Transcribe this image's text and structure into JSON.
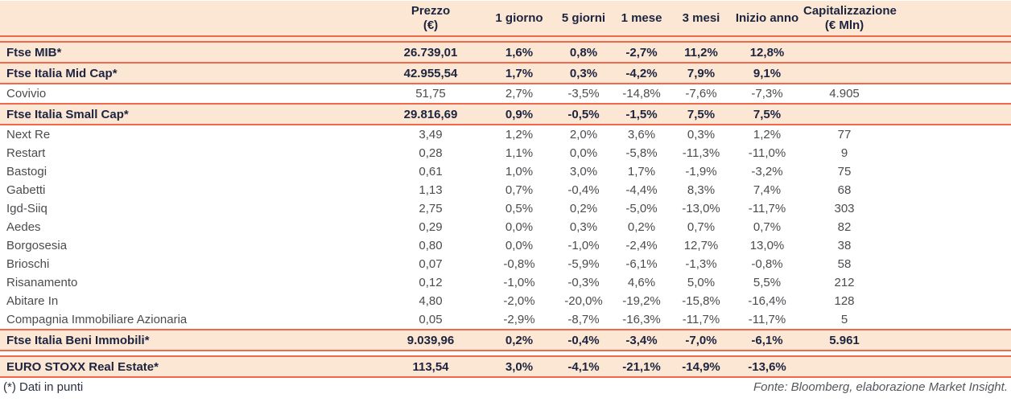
{
  "accent": {
    "rule_color": "#f2684d",
    "band_bg": "#fce7d4",
    "heading_text_color": "#1c2440",
    "body_text_color": "#4b4c50"
  },
  "table": {
    "header": {
      "name": "",
      "prezzo": {
        "l1": "Prezzo",
        "l2": "(€)"
      },
      "g1": "1 giorno",
      "g5": "5 giorni",
      "m1": "1 mese",
      "m3": "3 mesi",
      "ytd": "Inizio anno",
      "cap": {
        "l1": "Capitalizzazione",
        "l2": "(€ Mln)"
      }
    },
    "rows": [
      {
        "type": "index",
        "name": "Ftse MIB*",
        "prezzo": "26.739,01",
        "g1": "1,6%",
        "g5": "0,8%",
        "m1": "-2,7%",
        "m3": "11,2%",
        "ytd": "12,8%",
        "cap": ""
      },
      {
        "type": "index",
        "name": "Ftse Italia Mid Cap*",
        "prezzo": "42.955,54",
        "g1": "1,7%",
        "g5": "0,3%",
        "m1": "-4,2%",
        "m3": "7,9%",
        "ytd": "9,1%",
        "cap": ""
      },
      {
        "type": "stock",
        "ruled": true,
        "name": "Covivio",
        "prezzo": "51,75",
        "g1": "2,7%",
        "g5": "-3,5%",
        "m1": "-14,8%",
        "m3": "-7,6%",
        "ytd": "-7,3%",
        "cap": "4.905"
      },
      {
        "type": "index",
        "name": "Ftse Italia Small Cap*",
        "prezzo": "29.816,69",
        "g1": "0,9%",
        "g5": "-0,5%",
        "m1": "-1,5%",
        "m3": "7,5%",
        "ytd": "7,5%",
        "cap": ""
      },
      {
        "type": "stock",
        "name": "Next Re",
        "prezzo": "3,49",
        "g1": "1,2%",
        "g5": "2,0%",
        "m1": "3,6%",
        "m3": "0,3%",
        "ytd": "1,2%",
        "cap": "77"
      },
      {
        "type": "stock",
        "name": "Restart",
        "prezzo": "0,28",
        "g1": "1,1%",
        "g5": "0,0%",
        "m1": "-5,8%",
        "m3": "-11,3%",
        "ytd": "-11,0%",
        "cap": "9"
      },
      {
        "type": "stock",
        "name": "Bastogi",
        "prezzo": "0,61",
        "g1": "1,0%",
        "g5": "3,0%",
        "m1": "1,7%",
        "m3": "-1,9%",
        "ytd": "-3,2%",
        "cap": "75"
      },
      {
        "type": "stock",
        "name": "Gabetti",
        "prezzo": "1,13",
        "g1": "0,7%",
        "g5": "-0,4%",
        "m1": "-4,4%",
        "m3": "8,3%",
        "ytd": "7,4%",
        "cap": "68"
      },
      {
        "type": "stock",
        "name": "Igd-Siiq",
        "prezzo": "2,75",
        "g1": "0,5%",
        "g5": "0,2%",
        "m1": "-5,0%",
        "m3": "-13,0%",
        "ytd": "-11,7%",
        "cap": "303"
      },
      {
        "type": "stock",
        "name": "Aedes",
        "prezzo": "0,29",
        "g1": "0,0%",
        "g5": "0,3%",
        "m1": "0,2%",
        "m3": "0,7%",
        "ytd": "0,7%",
        "cap": "82"
      },
      {
        "type": "stock",
        "name": "Borgosesia",
        "prezzo": "0,80",
        "g1": "0,0%",
        "g5": "-1,0%",
        "m1": "-2,4%",
        "m3": "12,7%",
        "ytd": "13,0%",
        "cap": "38"
      },
      {
        "type": "stock",
        "name": "Brioschi",
        "prezzo": "0,07",
        "g1": "-0,8%",
        "g5": "-5,9%",
        "m1": "-6,1%",
        "m3": "-1,3%",
        "ytd": "-0,8%",
        "cap": "58"
      },
      {
        "type": "stock",
        "name": "Risanamento",
        "prezzo": "0,12",
        "g1": "-1,0%",
        "g5": "-0,3%",
        "m1": "4,6%",
        "m3": "5,0%",
        "ytd": "5,5%",
        "cap": "212"
      },
      {
        "type": "stock",
        "name": "Abitare In",
        "prezzo": "4,80",
        "g1": "-2,0%",
        "g5": "-20,0%",
        "m1": "-19,2%",
        "m3": "-15,8%",
        "ytd": "-16,4%",
        "cap": "128"
      },
      {
        "type": "stock",
        "name": "Compagnia Immobiliare Azionaria",
        "prezzo": "0,05",
        "g1": "-2,9%",
        "g5": "-8,7%",
        "m1": "-16,3%",
        "m3": "-11,7%",
        "ytd": "-11,7%",
        "cap": "5"
      },
      {
        "type": "index",
        "name": "Ftse Italia Beni Immobili*",
        "prezzo": "9.039,96",
        "g1": "0,2%",
        "g5": "-0,4%",
        "m1": "-3,4%",
        "m3": "-7,0%",
        "ytd": "-6,1%",
        "cap": "5.961"
      },
      {
        "type": "index",
        "gap_before": true,
        "name": "EURO STOXX Real Estate*",
        "prezzo": "113,54",
        "g1": "3,0%",
        "g5": "-4,1%",
        "m1": "-21,1%",
        "m3": "-14,9%",
        "ytd": "-13,6%",
        "cap": ""
      }
    ]
  },
  "footer": {
    "note": "(*) Dati in punti",
    "source": "Fonte: Bloomberg, elaborazione Market Insight."
  }
}
